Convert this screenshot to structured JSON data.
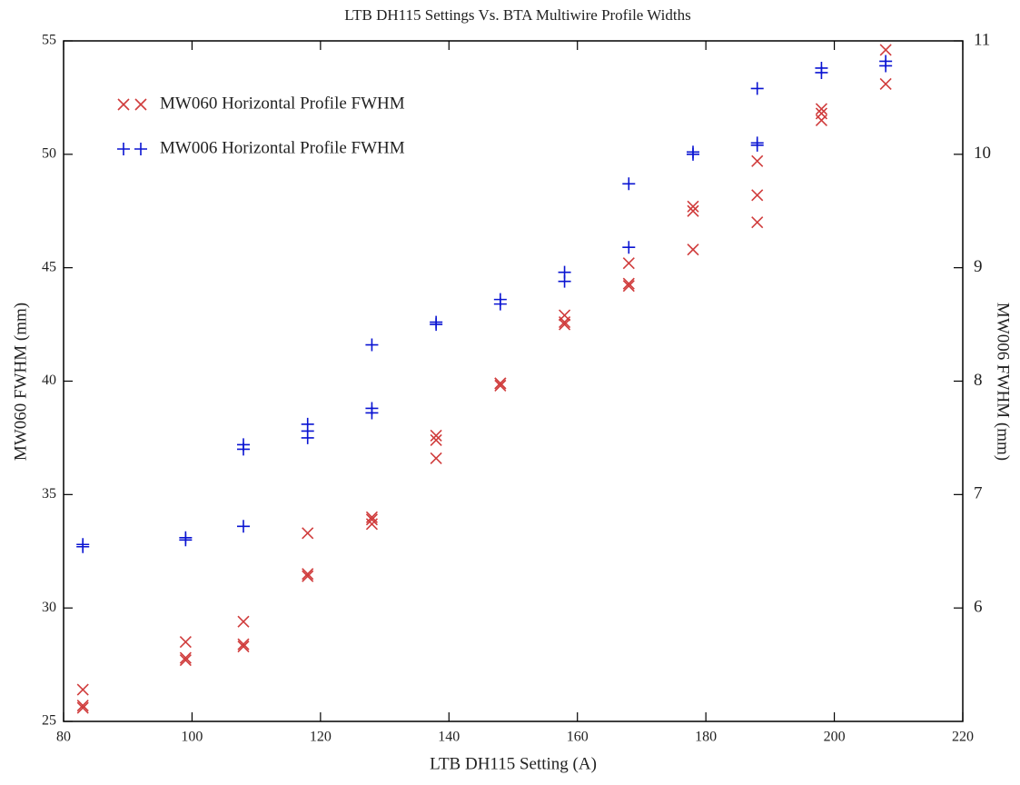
{
  "chart_data": {
    "type": "scatter",
    "title": "LTB DH115 Settings Vs. BTA Multiwire Profile Widths",
    "xlabel": "LTB DH115 Setting (A)",
    "ylabel": "MW060  FWHM (mm)",
    "y2label": "MW006 FWHM (mm)",
    "xlim": [
      80,
      220
    ],
    "xticks": [
      80,
      100,
      120,
      140,
      160,
      180,
      200,
      220
    ],
    "ylim": [
      25,
      55
    ],
    "yticks": [
      25,
      30,
      35,
      40,
      45,
      50,
      55
    ],
    "y2lim": [
      5,
      11
    ],
    "y2ticks": [
      6,
      7,
      8,
      9,
      10,
      11
    ],
    "legend": "upper left",
    "series": [
      {
        "name": "MW060 Horizontal Profile FWHM",
        "color": "#d03c3c",
        "marker": "x",
        "axis": "y",
        "x": [
          83,
          83,
          83,
          99,
          99,
          99,
          108,
          108,
          108,
          118,
          118,
          118,
          128,
          128,
          128,
          138,
          138,
          138,
          148,
          148,
          148,
          158,
          158,
          158,
          168,
          168,
          168,
          178,
          178,
          178,
          188,
          188,
          188,
          198,
          198,
          198,
          208,
          208
        ],
        "values": [
          26.4,
          25.6,
          25.7,
          28.5,
          27.8,
          27.7,
          29.4,
          28.4,
          28.3,
          33.3,
          31.5,
          31.4,
          34.0,
          33.7,
          33.9,
          37.6,
          37.4,
          36.6,
          39.9,
          39.8,
          39.9,
          42.9,
          42.6,
          42.5,
          45.2,
          44.3,
          44.2,
          47.7,
          47.5,
          45.8,
          49.7,
          48.2,
          47.0,
          52.0,
          51.8,
          51.5,
          54.6,
          53.1
        ]
      },
      {
        "name": "MW006 Horizontal Profile FWHM",
        "color": "#0a14d2",
        "marker": "+",
        "axis": "y2",
        "x": [
          83,
          83,
          99,
          99,
          108,
          108,
          108,
          118,
          118,
          118,
          128,
          128,
          128,
          138,
          138,
          148,
          148,
          158,
          158,
          168,
          168,
          178,
          178,
          188,
          188,
          188,
          198,
          198,
          208,
          208
        ],
        "values": [
          6.56,
          6.54,
          6.62,
          6.6,
          7.44,
          7.4,
          6.72,
          7.62,
          7.56,
          7.5,
          8.32,
          7.76,
          7.72,
          8.52,
          8.5,
          8.72,
          8.68,
          8.96,
          8.88,
          9.74,
          9.18,
          10.02,
          10.0,
          10.58,
          10.1,
          10.08,
          10.76,
          10.72,
          10.82,
          10.78
        ]
      }
    ]
  }
}
